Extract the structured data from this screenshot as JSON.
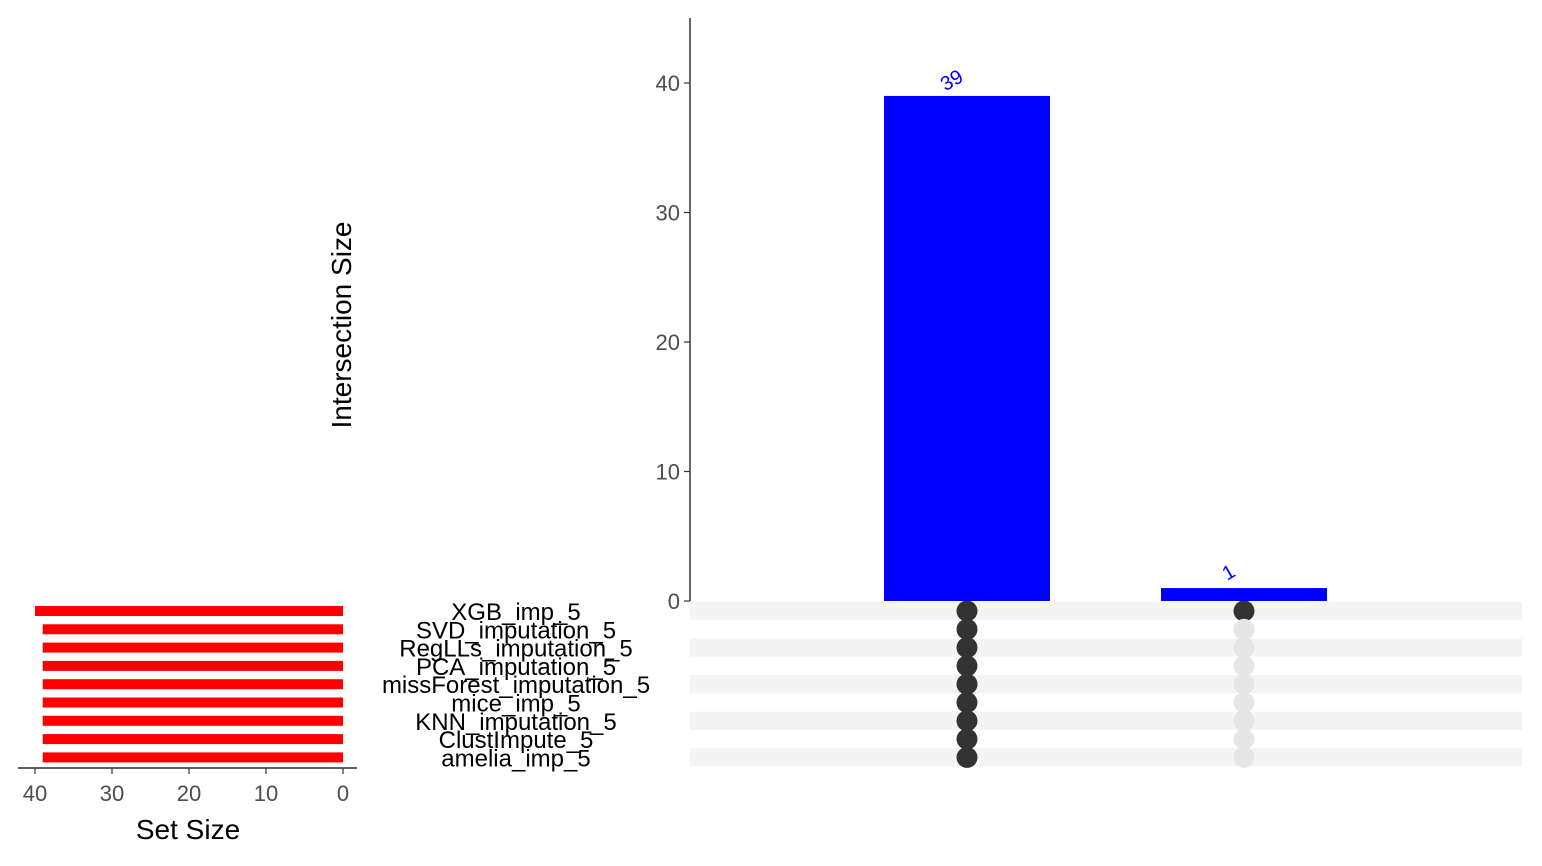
{
  "chart_data": {
    "type": "bar",
    "subtype": "upset",
    "ylabel": "Intersection Size",
    "xlabel_sets": "Set Size",
    "ylim": [
      0,
      45
    ],
    "yticks": [
      "0",
      "10",
      "20",
      "30",
      "40"
    ],
    "set_size_ticks": [
      "40",
      "30",
      "20",
      "10",
      "0"
    ],
    "set_size_xlim": [
      0,
      40
    ],
    "bar_color": "#0000ff",
    "set_bar_color": "#ff0000",
    "dot_active_color": "#333333",
    "dot_inactive_color": "#e6e6e6",
    "sets": [
      {
        "name": "XGB_imp_5",
        "size": 40
      },
      {
        "name": "SVD_imputation_5",
        "size": 39
      },
      {
        "name": "RegLLs_imputation_5",
        "size": 39
      },
      {
        "name": "PCA_imputation_5",
        "size": 39
      },
      {
        "name": "missForest_imputation_5",
        "size": 39
      },
      {
        "name": "mice_imp_5",
        "size": 39
      },
      {
        "name": "KNN_imputation_5",
        "size": 39
      },
      {
        "name": "ClustImpute_5",
        "size": 39
      },
      {
        "name": "amelia_imp_5",
        "size": 39
      }
    ],
    "intersections": [
      {
        "value": 39,
        "label": "39",
        "members": [
          0,
          1,
          2,
          3,
          4,
          5,
          6,
          7,
          8
        ]
      },
      {
        "value": 1,
        "label": "1",
        "members": [
          0
        ]
      }
    ]
  }
}
